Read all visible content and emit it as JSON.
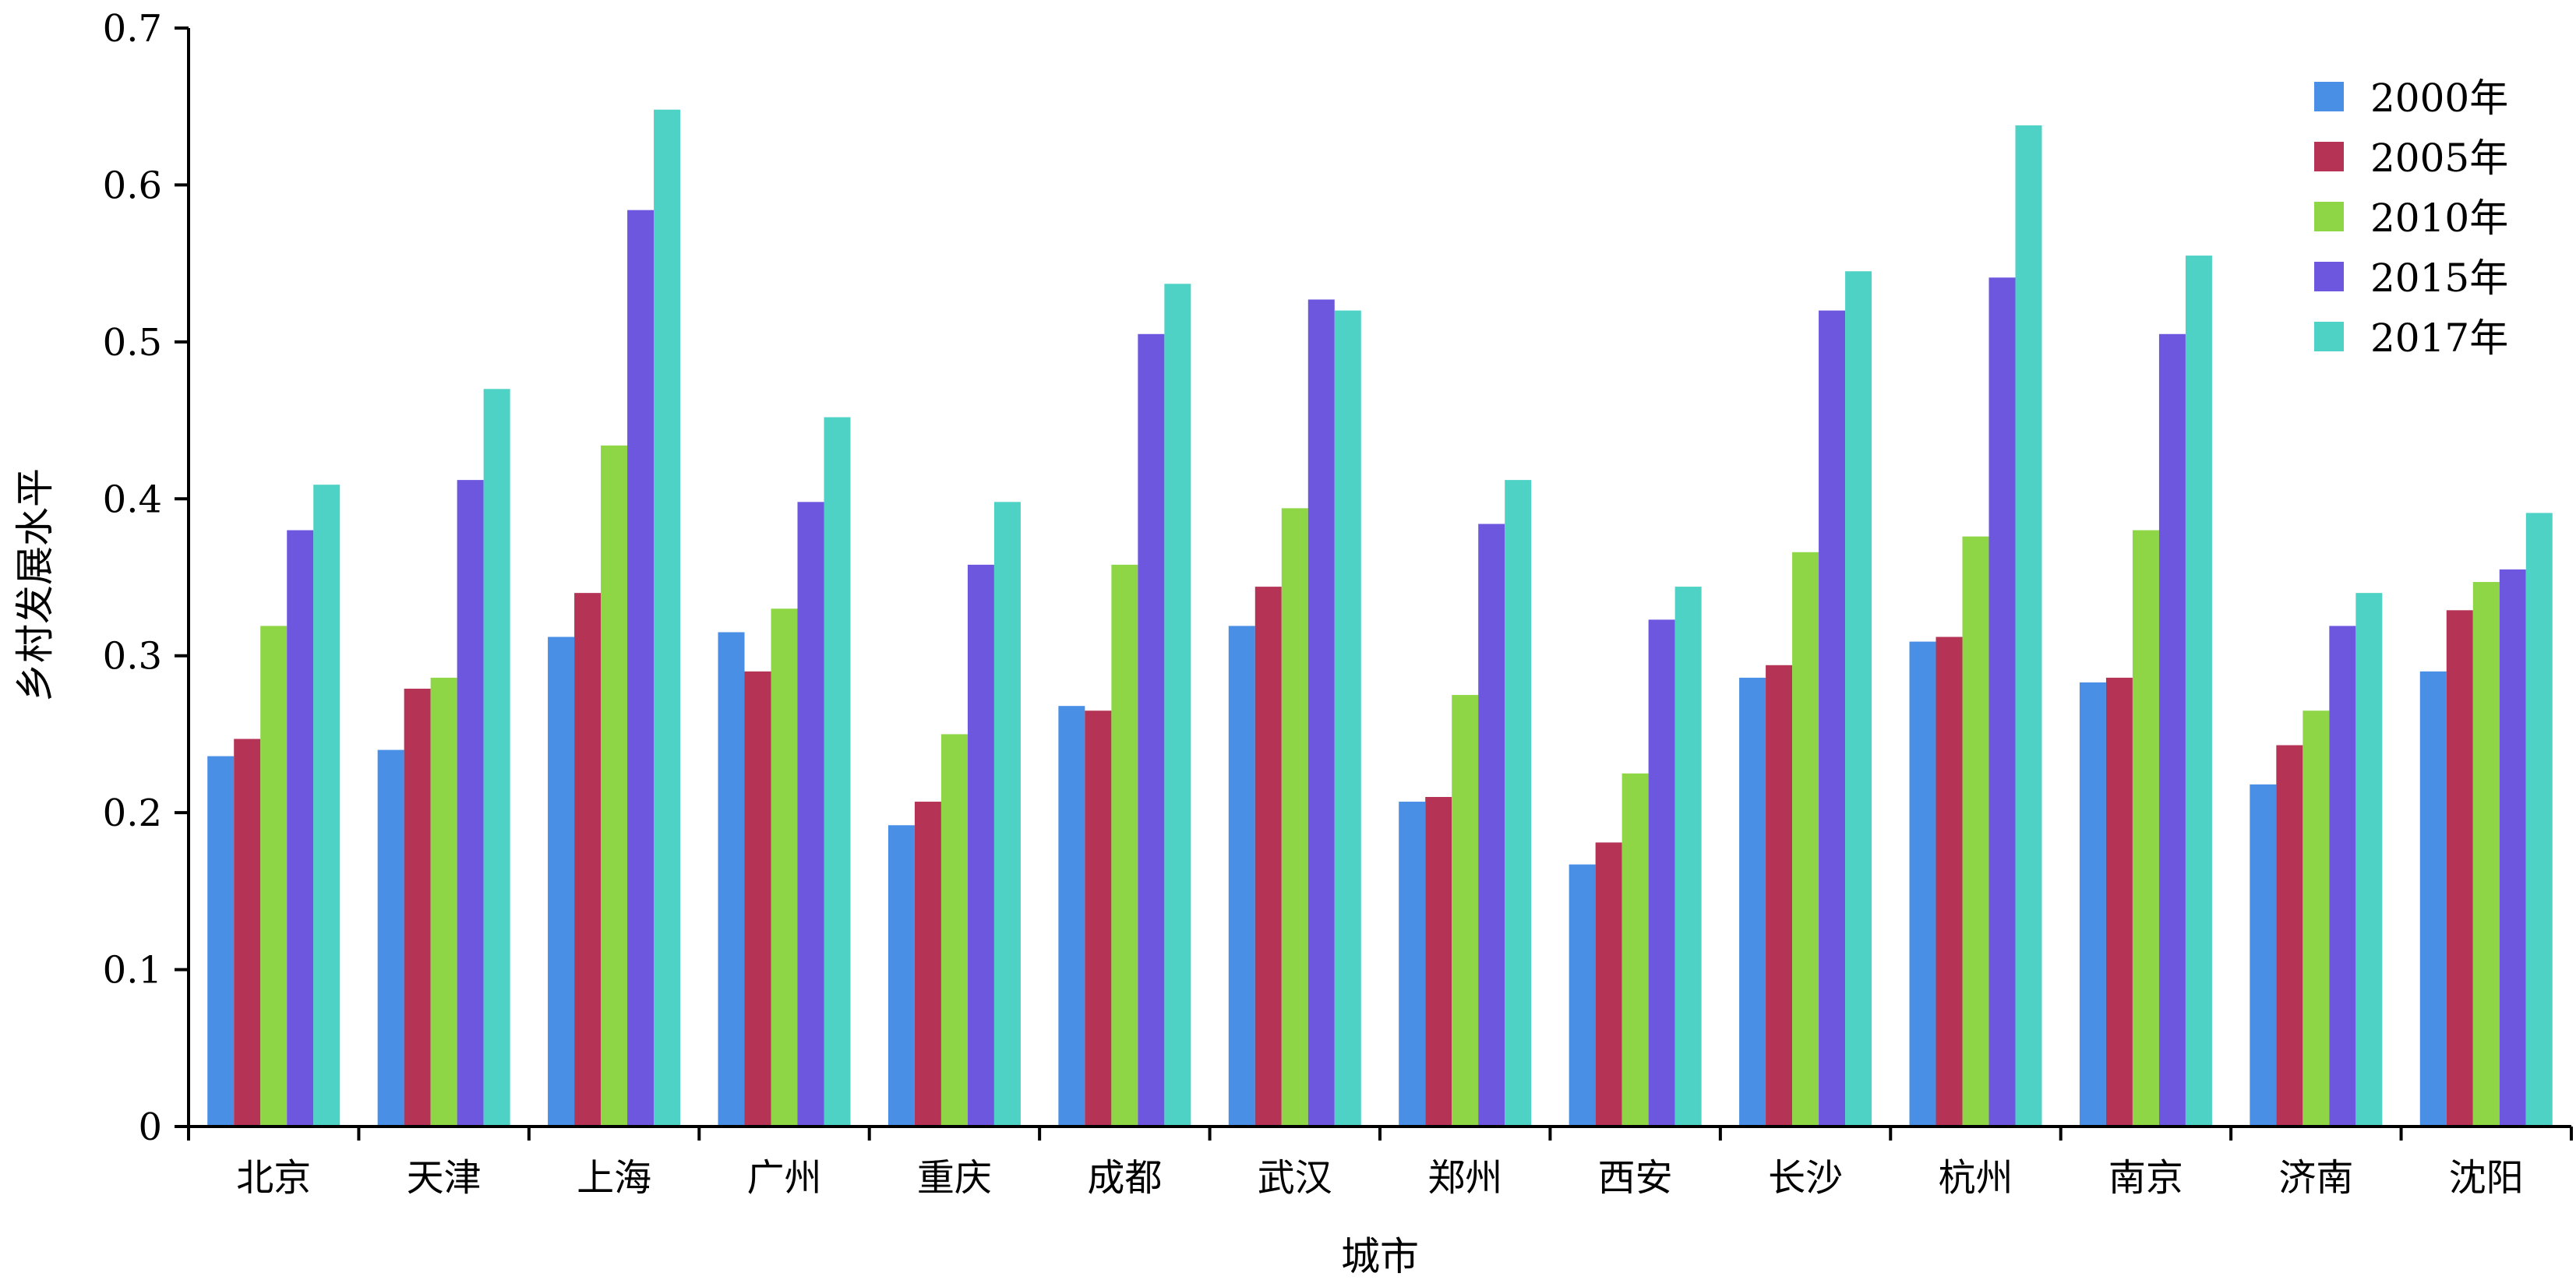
{
  "chart_data": {
    "type": "bar",
    "xlabel": "城市",
    "ylabel": "乡村发展水平",
    "ylim": [
      0,
      0.7
    ],
    "yticks": [
      "0",
      "0.1",
      "0.2",
      "0.3",
      "0.4",
      "0.5",
      "0.6",
      "0.7"
    ],
    "categories": [
      "北京",
      "天津",
      "上海",
      "广州",
      "重庆",
      "成都",
      "武汉",
      "郑州",
      "西安",
      "长沙",
      "杭州",
      "南京",
      "济南",
      "沈阳"
    ],
    "legend_position": "top-right",
    "grid": false,
    "series": [
      {
        "name": "2000年",
        "color": "#4A8FE6",
        "values": [
          0.236,
          0.24,
          0.312,
          0.315,
          0.192,
          0.268,
          0.319,
          0.207,
          0.167,
          0.286,
          0.309,
          0.283,
          0.218,
          0.29
        ]
      },
      {
        "name": "2005年",
        "color": "#B53456",
        "values": [
          0.247,
          0.279,
          0.34,
          0.29,
          0.207,
          0.265,
          0.344,
          0.21,
          0.181,
          0.294,
          0.312,
          0.286,
          0.243,
          0.329
        ]
      },
      {
        "name": "2010年",
        "color": "#8ED646",
        "values": [
          0.319,
          0.286,
          0.434,
          0.33,
          0.25,
          0.358,
          0.394,
          0.275,
          0.225,
          0.366,
          0.376,
          0.38,
          0.265,
          0.347
        ]
      },
      {
        "name": "2015年",
        "color": "#6D57DF",
        "values": [
          0.38,
          0.412,
          0.584,
          0.398,
          0.358,
          0.505,
          0.527,
          0.384,
          0.323,
          0.52,
          0.541,
          0.505,
          0.319,
          0.355
        ]
      },
      {
        "name": "2017年",
        "color": "#4FD2C6",
        "values": [
          0.409,
          0.47,
          0.648,
          0.452,
          0.398,
          0.537,
          0.52,
          0.412,
          0.344,
          0.545,
          0.638,
          0.555,
          0.34,
          0.391
        ]
      }
    ]
  }
}
